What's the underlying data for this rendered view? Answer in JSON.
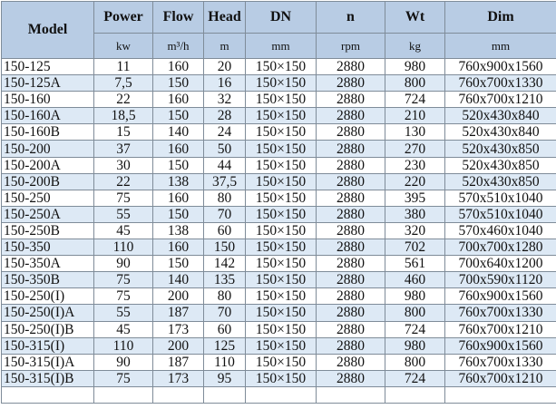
{
  "headers": [
    {
      "label": "Model",
      "unit": ""
    },
    {
      "label": "Power",
      "unit": "kw"
    },
    {
      "label": "Flow",
      "unit": "m³/h"
    },
    {
      "label": "Head",
      "unit": "m"
    },
    {
      "label": "DN",
      "unit": "mm"
    },
    {
      "label": "n",
      "unit": "rpm"
    },
    {
      "label": "Wt",
      "unit": "kg"
    },
    {
      "label": "Dim",
      "unit": "mm"
    }
  ],
  "colors": {
    "header_bg": "#b8cce4",
    "alt_row_bg": "#dde9f5",
    "border": "#7f8c99"
  },
  "rows": [
    [
      "150-125",
      "11",
      "160",
      "20",
      "150×150",
      "2880",
      "980",
      "760x900x1560"
    ],
    [
      "150-125A",
      "7,5",
      "150",
      "16",
      "150×150",
      "2880",
      "800",
      "760x700x1330"
    ],
    [
      "150-160",
      "22",
      "160",
      "32",
      "150×150",
      "2880",
      "724",
      "760x700x1210"
    ],
    [
      "150-160A",
      "18,5",
      "150",
      "28",
      "150×150",
      "2880",
      "210",
      "520x430x840"
    ],
    [
      "150-160B",
      "15",
      "140",
      "24",
      "150×150",
      "2880",
      "130",
      "520x430x840"
    ],
    [
      "150-200",
      "37",
      "160",
      "50",
      "150×150",
      "2880",
      "270",
      "520x430x850"
    ],
    [
      "150-200A",
      "30",
      "150",
      "44",
      "150×150",
      "2880",
      "230",
      "520x430x850"
    ],
    [
      "150-200B",
      "22",
      "138",
      "37,5",
      "150×150",
      "2880",
      "220",
      "520x430x850"
    ],
    [
      "150-250",
      "75",
      "160",
      "80",
      "150×150",
      "2880",
      "395",
      "570x510x1040"
    ],
    [
      "150-250A",
      "55",
      "150",
      "70",
      "150×150",
      "2880",
      "380",
      "570x510x1040"
    ],
    [
      "150-250B",
      "45",
      "138",
      "60",
      "150×150",
      "2880",
      "320",
      "570x460x1040"
    ],
    [
      "150-350",
      "110",
      "160",
      "150",
      "150×150",
      "2880",
      "702",
      "700x700x1280"
    ],
    [
      "150-350A",
      "90",
      "150",
      "142",
      "150×150",
      "2880",
      "561",
      "700x640x1200"
    ],
    [
      "150-350B",
      "75",
      "140",
      "135",
      "150×150",
      "2880",
      "460",
      "700x590x1120"
    ],
    [
      "150-250(I)",
      "75",
      "200",
      "80",
      "150×150",
      "2880",
      "980",
      "760x900x1560"
    ],
    [
      "150-250(I)A",
      "55",
      "187",
      "70",
      "150×150",
      "2880",
      "800",
      "760x700x1330"
    ],
    [
      "150-250(I)B",
      "45",
      "173",
      "60",
      "150×150",
      "2880",
      "724",
      "760x700x1210"
    ],
    [
      "150-315(I)",
      "110",
      "200",
      "125",
      "150×150",
      "2880",
      "980",
      "760x900x1560"
    ],
    [
      "150-315(I)A",
      "90",
      "187",
      "110",
      "150×150",
      "2880",
      "800",
      "760x700x1330"
    ],
    [
      "150-315(I)B",
      "75",
      "173",
      "95",
      "150×150",
      "2880",
      "724",
      "760x700x1210"
    ]
  ]
}
